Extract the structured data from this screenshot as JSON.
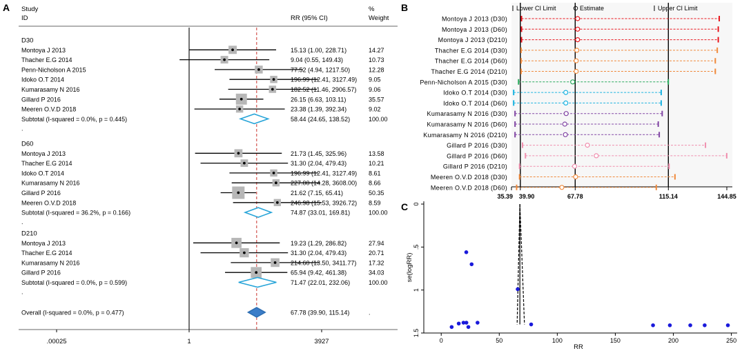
{
  "chart_data": [
    {
      "type": "forest",
      "panel_label": "A",
      "header": {
        "study_label": "Study",
        "id_label": "ID",
        "rr_label": "RR (95% CI)",
        "weight_label_1": "%",
        "weight_label_2": "Weight"
      },
      "x_ticks": [
        {
          "value": 0.00025,
          "label": ".00025"
        },
        {
          "value": 1,
          "label": "1"
        },
        {
          "value": 3927,
          "label": "3927"
        }
      ],
      "overall_rr": 67.78,
      "groups": [
        {
          "name": "D30",
          "studies": [
            {
              "id": "Montoya J 2013",
              "rr": 15.13,
              "lo": 1.0,
              "hi": 228.71,
              "ci_text": "15.13 (1.00, 228.71)",
              "weight": "14.27"
            },
            {
              "id": "Thacher E.G 2014",
              "rr": 9.04,
              "lo": 0.55,
              "hi": 149.43,
              "ci_text": "9.04 (0.55, 149.43)",
              "weight": "10.73"
            },
            {
              "id": "Penn-Nicholson A 2015",
              "rr": 77.52,
              "lo": 4.94,
              "hi": 1217.5,
              "ci_text": "77.52 (4.94, 1217.50)",
              "weight": "12.28"
            },
            {
              "id": "Idoko O.T 2014",
              "rr": 196.99,
              "lo": 12.41,
              "hi": 3127.49,
              "ci_text": "196.99 (12.41, 3127.49)",
              "weight": "9.05"
            },
            {
              "id": "Kumarasamy N 2016",
              "rr": 182.52,
              "lo": 11.46,
              "hi": 2906.57,
              "ci_text": "182.52 (11.46, 2906.57)",
              "weight": "9.06"
            },
            {
              "id": "Gillard P 2016",
              "rr": 26.15,
              "lo": 6.63,
              "hi": 103.11,
              "ci_text": "26.15 (6.63, 103.11)",
              "weight": "35.57"
            },
            {
              "id": "Meeren O.V.D 2018",
              "rr": 23.38,
              "lo": 1.39,
              "hi": 392.34,
              "ci_text": "23.38 (1.39, 392.34)",
              "weight": "9.02"
            }
          ],
          "subtotal": {
            "label": "Subtotal  (I-squared = 0.0%, p = 0.445)",
            "rr": 58.44,
            "lo": 24.65,
            "hi": 138.52,
            "ci_text": "58.44 (24.65, 138.52)",
            "weight": "100.00"
          }
        },
        {
          "name": "D60",
          "studies": [
            {
              "id": "Montoya J 2013",
              "rr": 21.73,
              "lo": 1.45,
              "hi": 325.96,
              "ci_text": "21.73 (1.45, 325.96)",
              "weight": "13.58"
            },
            {
              "id": "Thacher E.G 2014",
              "rr": 31.3,
              "lo": 2.04,
              "hi": 479.43,
              "ci_text": "31.30 (2.04, 479.43)",
              "weight": "10.21"
            },
            {
              "id": "Idoko O.T 2014",
              "rr": 196.99,
              "lo": 12.41,
              "hi": 3127.49,
              "ci_text": "196.99 (12.41, 3127.49)",
              "weight": "8.61"
            },
            {
              "id": "Kumarasamy N 2016",
              "rr": 227.0,
              "lo": 14.28,
              "hi": 3608.0,
              "ci_text": "227.00 (14.28, 3608.00)",
              "weight": "8.66"
            },
            {
              "id": "Gillard P 2016",
              "rr": 21.62,
              "lo": 7.15,
              "hi": 65.41,
              "ci_text": "21.62 (7.15, 65.41)",
              "weight": "50.35"
            },
            {
              "id": "Meeren O.V.D 2018",
              "rr": 246.98,
              "lo": 15.53,
              "hi": 3926.72,
              "ci_text": "246.98 (15.53, 3926.72)",
              "weight": "8.59"
            }
          ],
          "subtotal": {
            "label": "Subtotal  (I-squared = 36.2%, p = 0.166)",
            "rr": 74.87,
            "lo": 33.01,
            "hi": 169.81,
            "ci_text": "74.87 (33.01, 169.81)",
            "weight": "100.00"
          }
        },
        {
          "name": "D210",
          "studies": [
            {
              "id": "Montoya J 2013",
              "rr": 19.23,
              "lo": 1.29,
              "hi": 286.82,
              "ci_text": "19.23 (1.29, 286.82)",
              "weight": "27.94"
            },
            {
              "id": "Thacher E.G 2014",
              "rr": 31.3,
              "lo": 2.04,
              "hi": 479.43,
              "ci_text": "31.30 (2.04, 479.43)",
              "weight": "20.71"
            },
            {
              "id": "Kumarasamy N 2016",
              "rr": 214.6,
              "lo": 13.5,
              "hi": 3411.77,
              "ci_text": "214.60 (13.50, 3411.77)",
              "weight": "17.32"
            },
            {
              "id": "Gillard P 2016",
              "rr": 65.94,
              "lo": 9.42,
              "hi": 461.38,
              "ci_text": "65.94 (9.42, 461.38)",
              "weight": "34.03"
            }
          ],
          "subtotal": {
            "label": "Subtotal  (I-squared = 0.0%, p = 0.599)",
            "rr": 71.47,
            "lo": 22.01,
            "hi": 232.06,
            "ci_text": "71.47 (22.01, 232.06)",
            "weight": "100.00"
          }
        }
      ],
      "overall": {
        "label": "Overall  (I-squared = 0.0%, p = 0.477)",
        "rr": 67.78,
        "lo": 39.9,
        "hi": 115.14,
        "ci_text": "67.78 (39.90, 115.14)",
        "weight": "."
      },
      "dot_label": "."
    },
    {
      "type": "interval",
      "panel_label": "B",
      "legend": {
        "lower": "Lower CI Limit",
        "estimate": "Estimate",
        "upper": "Upper CI Limit"
      },
      "x_ticks": [
        {
          "value": 35.39,
          "label": "35.39"
        },
        {
          "value": 39.9,
          "label": "39.90"
        },
        {
          "value": 67.78,
          "label": "67.78"
        },
        {
          "value": 115.14,
          "label": "115.14"
        },
        {
          "value": 144.85,
          "label": "144.85"
        }
      ],
      "x_range": [
        35.39,
        144.85
      ],
      "reference_lines": [
        39.9,
        67.78,
        115.14
      ],
      "rows": [
        {
          "label": "Montoya J 2013 (D30)",
          "lo": 40.5,
          "est": 69.0,
          "hi": 141.0,
          "color": "#e8141b"
        },
        {
          "label": "Montoya J 2013 (D60)",
          "lo": 40.5,
          "est": 69.0,
          "hi": 140.5,
          "color": "#e8141b"
        },
        {
          "label": "Montoya J 2013 (D210)",
          "lo": 40.5,
          "est": 69.0,
          "hi": 140.5,
          "color": "#e8141b"
        },
        {
          "label": "Thacher E.G 2014 (D30)",
          "lo": 40.3,
          "est": 68.6,
          "hi": 140.0,
          "color": "#f08a3c"
        },
        {
          "label": "Thacher E.G 2014 (D60)",
          "lo": 40.3,
          "est": 68.3,
          "hi": 139.0,
          "color": "#f08a3c"
        },
        {
          "label": "Thacher E.G 2014 (D210)",
          "lo": 40.3,
          "est": 68.3,
          "hi": 139.0,
          "color": "#f08a3c"
        },
        {
          "label": "Penn-Nicholson A 2015 (D30)",
          "lo": 39.0,
          "est": 66.5,
          "hi": 115.1,
          "color": "#27a85a"
        },
        {
          "label": "Idoko O.T 2014 (D30)",
          "lo": 36.5,
          "est": 63.0,
          "hi": 111.5,
          "color": "#1ab2e0"
        },
        {
          "label": "Idoko O.T 2014 (D60)",
          "lo": 36.5,
          "est": 63.0,
          "hi": 111.5,
          "color": "#1ab2e0"
        },
        {
          "label": "Kumarasamy N 2016 (D30)",
          "lo": 37.2,
          "est": 63.2,
          "hi": 112.0,
          "color": "#8044a3"
        },
        {
          "label": "Kumarasamy N 2016 (D60)",
          "lo": 37.2,
          "est": 62.5,
          "hi": 110.0,
          "color": "#8044a3"
        },
        {
          "label": "Kumarasamy N 2016 (D210)",
          "lo": 37.2,
          "est": 62.8,
          "hi": 110.5,
          "color": "#8044a3"
        },
        {
          "label": "Gillard P 2016 (D30)",
          "lo": 41.0,
          "est": 74.0,
          "hi": 134.0,
          "color": "#f08fae"
        },
        {
          "label": "Gillard P 2016 (D60)",
          "lo": 42.5,
          "est": 78.5,
          "hi": 144.8,
          "color": "#f08fae"
        },
        {
          "label": "Gillard P 2016 (D210)",
          "lo": 39.5,
          "est": 67.5,
          "hi": 115.5,
          "color": "#f08fae"
        },
        {
          "label": "Meeren O.V.D 2018 (D30)",
          "lo": 39.5,
          "est": 68.0,
          "hi": 118.5,
          "color": "#f08a3c"
        },
        {
          "label": "Meeren O.V.D 2018 (D60)",
          "lo": 38.0,
          "est": 61.0,
          "hi": 109.0,
          "color": "#f08a3c"
        }
      ]
    },
    {
      "type": "scatter",
      "panel_label": "C",
      "xlabel": "RR",
      "ylabel": "se(logRR)",
      "xlim": [
        -15,
        255
      ],
      "ylim": [
        0,
        1.5
      ],
      "y_reversed": true,
      "x_ticks": [
        0,
        50,
        100,
        150,
        200,
        250
      ],
      "y_ticks": [
        {
          "value": 0,
          "label": "0"
        },
        {
          "value": 0.5,
          "label": ".5"
        },
        {
          "value": 1,
          "label": "1"
        },
        {
          "value": 1.5,
          "label": "1.5"
        }
      ],
      "funnel_center": 67.78,
      "funnel_se_max": 1.4,
      "points": [
        {
          "x": 21.6,
          "y": 0.56
        },
        {
          "x": 26.2,
          "y": 0.7
        },
        {
          "x": 65.9,
          "y": 0.99
        },
        {
          "x": 9.0,
          "y": 1.43
        },
        {
          "x": 15.1,
          "y": 1.39
        },
        {
          "x": 19.2,
          "y": 1.38
        },
        {
          "x": 21.7,
          "y": 1.38
        },
        {
          "x": 23.4,
          "y": 1.43
        },
        {
          "x": 31.3,
          "y": 1.38
        },
        {
          "x": 77.5,
          "y": 1.4
        },
        {
          "x": 182.5,
          "y": 1.41
        },
        {
          "x": 197.0,
          "y": 1.41
        },
        {
          "x": 214.6,
          "y": 1.41
        },
        {
          "x": 227.0,
          "y": 1.41
        },
        {
          "x": 247.0,
          "y": 1.41
        }
      ]
    }
  ]
}
